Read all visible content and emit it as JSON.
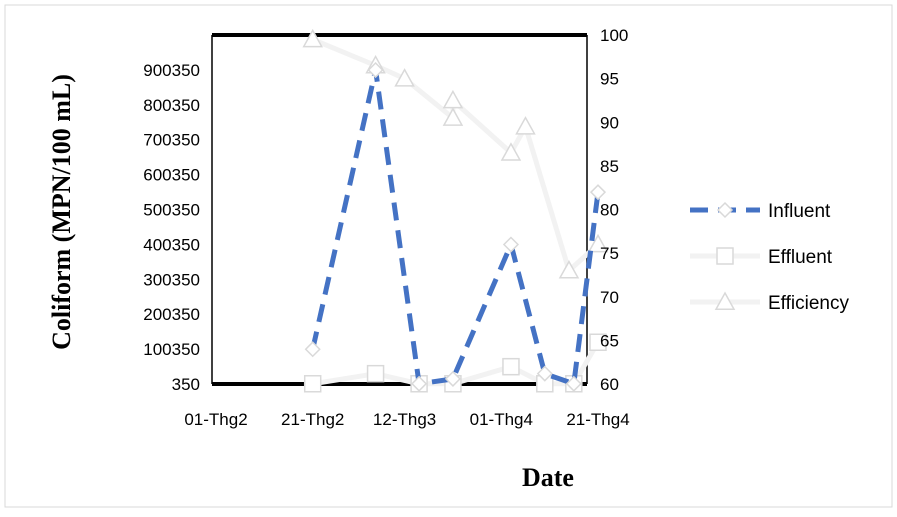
{
  "chart_data": {
    "type": "line",
    "xlabel": "Date",
    "ylabel": "Coliform (MPN/100 mL)",
    "x_ticks": [
      "01-Thg2",
      "21-Thg2",
      "12-Thg3",
      "01-Thg4",
      "21-Thg4"
    ],
    "xlim": [
      "01-Thg2",
      "21-Thg4"
    ],
    "ylim_left": [
      350,
      1000350
    ],
    "yticks_left": [
      "350",
      "100350",
      "200350",
      "300350",
      "400350",
      "500350",
      "600350",
      "700350",
      "800350",
      "900350"
    ],
    "ylim_right": [
      60,
      100
    ],
    "yticks_right": [
      "60",
      "65",
      "70",
      "75",
      "80",
      "85",
      "90",
      "95",
      "100"
    ],
    "grid": false,
    "legend": "right",
    "series": [
      {
        "name": "Influent",
        "axis": "left",
        "color": "#4472c4",
        "style": "dashed",
        "marker": "diamond",
        "points": [
          {
            "x": "21-Thg2",
            "y": 100000
          },
          {
            "x": "06-Thg3",
            "y": 900000
          },
          {
            "x": "15-Thg3",
            "y": 1000
          },
          {
            "x": "22-Thg3",
            "y": 15000
          },
          {
            "x": "03-Thg4",
            "y": 400000
          },
          {
            "x": "10-Thg4",
            "y": 30000
          },
          {
            "x": "16-Thg4",
            "y": 1000
          },
          {
            "x": "21-Thg4",
            "y": 550000
          }
        ]
      },
      {
        "name": "Effluent",
        "axis": "left",
        "color": "#f2f2f2",
        "marker": "square",
        "points": [
          {
            "x": "21-Thg2",
            "y": 1000
          },
          {
            "x": "06-Thg3",
            "y": 30000
          },
          {
            "x": "15-Thg3",
            "y": 1000
          },
          {
            "x": "22-Thg3",
            "y": 1000
          },
          {
            "x": "03-Thg4",
            "y": 50000
          },
          {
            "x": "10-Thg4",
            "y": 1000
          },
          {
            "x": "16-Thg4",
            "y": 1000
          },
          {
            "x": "21-Thg4",
            "y": 120000
          }
        ]
      },
      {
        "name": "Efficiency",
        "axis": "right",
        "color": "#f2f2f2",
        "marker": "triangle",
        "points": [
          {
            "x": "21-Thg2",
            "y": 99.5
          },
          {
            "x": "06-Thg3",
            "y": 96.5
          },
          {
            "x": "12-Thg3",
            "y": 95
          },
          {
            "x": "22-Thg3",
            "y": 90.5
          },
          {
            "x": "22-Thg3",
            "y": 92.5
          },
          {
            "x": "03-Thg4",
            "y": 86.5
          },
          {
            "x": "06-Thg4",
            "y": 89.5
          },
          {
            "x": "15-Thg4",
            "y": 73
          },
          {
            "x": "21-Thg4",
            "y": 76
          }
        ]
      }
    ]
  }
}
